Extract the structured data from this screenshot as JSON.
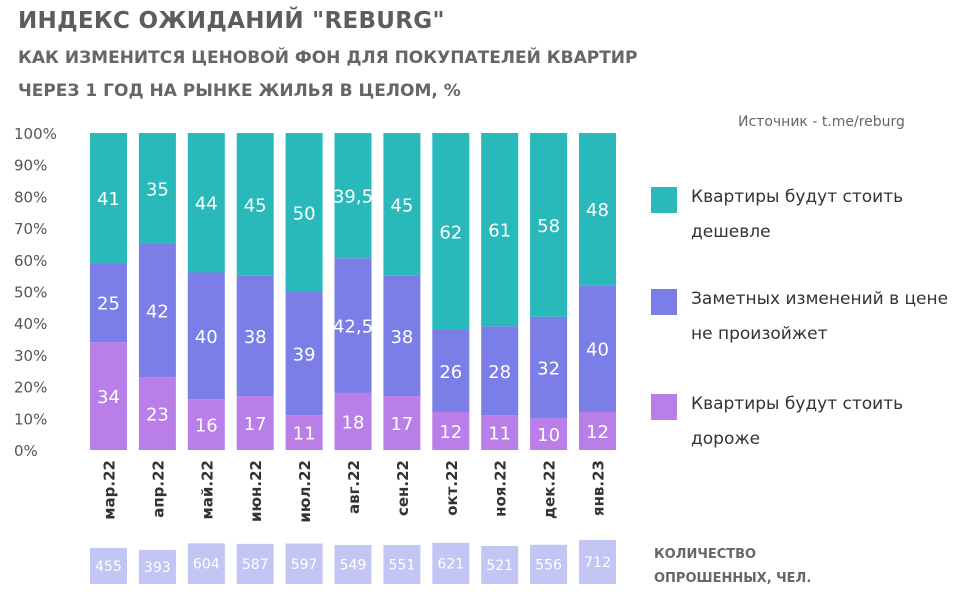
{
  "title": "ИНДЕКС ОЖИДАНИЙ \"REBURG\"",
  "subtitle_line1": "КАК ИЗМЕНИТСЯ ЦЕНОВОЙ ФОН ДЛЯ ПОКУПАТЕЛЕЙ КВАРТИР",
  "subtitle_line2": "ЧЕРЕЗ  1 ГОД НА РЫНКЕ ЖИЛЬЯ В ЦЕЛОМ, %",
  "source": "Источник - t.me/reburg",
  "count_caption": "КОЛИЧЕСТВО ОПРОШЕННЫХ, ЧЕЛ.",
  "colors": {
    "cheaper": "#2ab9bb",
    "no_change": "#7a7ee6",
    "pricier": "#b97ee8",
    "count_bar": "#c3c5f5"
  },
  "chart_data": {
    "type": "bar",
    "stacked": true,
    "categories": [
      "мар.22",
      "апр.22",
      "май.22",
      "июн.22",
      "июл.22",
      "авг.22",
      "сен.22",
      "окт.22",
      "ноя.22",
      "дек.22",
      "янв.23"
    ],
    "series": [
      {
        "name": "Квартиры будут стоить дороже",
        "key": "pricier",
        "values": [
          34,
          23,
          16,
          17,
          11,
          18,
          17,
          12,
          11,
          10,
          12
        ]
      },
      {
        "name": "Заметных изменений в цене не произойжет",
        "key": "no_change",
        "values": [
          25,
          42,
          40,
          38,
          39,
          42.5,
          38,
          26,
          28,
          32,
          40
        ]
      },
      {
        "name": "Квартиры будут стоить дешевле",
        "key": "cheaper",
        "values": [
          41,
          35,
          44,
          45,
          50,
          39.5,
          45,
          62,
          61,
          58,
          48
        ]
      }
    ],
    "value_labels": {
      "pricier": [
        "34",
        "23",
        "16",
        "17",
        "11",
        "18",
        "17",
        "12",
        "11",
        "10",
        "12"
      ],
      "no_change": [
        "25",
        "42",
        "40",
        "38",
        "39",
        "42,5",
        "38",
        "26",
        "28",
        "32",
        "40"
      ],
      "cheaper": [
        "41",
        "35",
        "44",
        "45",
        "50",
        "39,5",
        "45",
        "62",
        "61",
        "58",
        "48"
      ]
    },
    "ylim": [
      0,
      100
    ],
    "yticks": [
      "0%",
      "10%",
      "20%",
      "30%",
      "40%",
      "50%",
      "60%",
      "70%",
      "80%",
      "90%",
      "100%"
    ],
    "legend_position": "right",
    "legend_order": [
      "cheaper",
      "no_change",
      "pricier"
    ],
    "respondents": [
      455,
      393,
      604,
      587,
      597,
      549,
      551,
      621,
      521,
      556,
      712
    ]
  }
}
